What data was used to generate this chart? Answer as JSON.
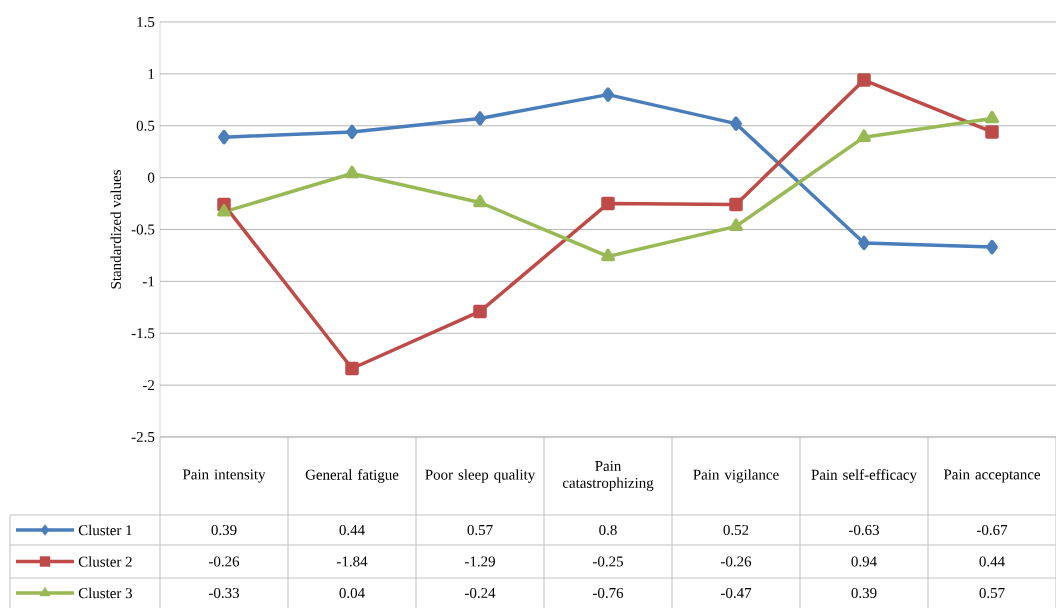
{
  "chart_data": {
    "type": "line",
    "ylabel": "Standardized values",
    "categories": [
      "Pain intensity",
      "General fatigue",
      "Poor sleep quality",
      "Pain catastrophizing",
      "Pain vigilance",
      "Pain self-efficacy",
      "Pain acceptance"
    ],
    "series": [
      {
        "name": "Cluster 1",
        "color": "#4a7ebb",
        "marker": "diamond",
        "values": [
          0.39,
          0.44,
          0.57,
          0.8,
          0.52,
          -0.63,
          -0.67
        ]
      },
      {
        "name": "Cluster 2",
        "color": "#be4b48",
        "marker": "square",
        "values": [
          -0.26,
          -1.84,
          -1.29,
          -0.25,
          -0.26,
          0.94,
          0.44
        ]
      },
      {
        "name": "Cluster 3",
        "color": "#98b954",
        "marker": "triangle",
        "values": [
          -0.33,
          0.04,
          -0.24,
          -0.76,
          -0.47,
          0.39,
          0.57
        ]
      }
    ],
    "ylim": [
      -2.5,
      1.5
    ],
    "yticks": [
      -2.5,
      -2,
      -1.5,
      -1,
      -0.5,
      0,
      0.5,
      1,
      1.5
    ],
    "grid": "y",
    "legend": "bottom",
    "data_labels": true,
    "line_style": "solid"
  }
}
